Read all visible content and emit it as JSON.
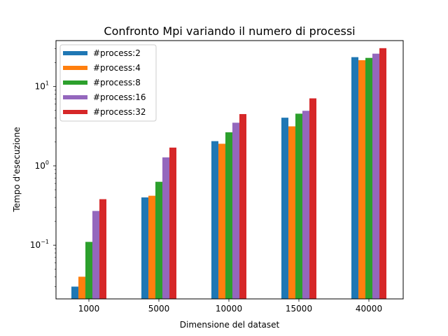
{
  "chart_data": {
    "type": "bar",
    "title": "Confronto Mpi variando il numero di processi",
    "xlabel": "Dimensione del dataset",
    "ylabel": "Tempo d'esecuzione",
    "yscale": "log",
    "ylim": [
      0.021,
      38
    ],
    "y_ticks": [
      {
        "value": 0.1,
        "base": "10",
        "exp": "−1"
      },
      {
        "value": 1,
        "base": "10",
        "exp": "0"
      },
      {
        "value": 10,
        "base": "10",
        "exp": "1"
      }
    ],
    "categories": [
      "1000",
      "5000",
      "10000",
      "15000",
      "40000"
    ],
    "series": [
      {
        "name": "#process:2",
        "color": "#1f77b4",
        "values": [
          0.03,
          0.4,
          2.05,
          4.05,
          23.5
        ]
      },
      {
        "name": "#process:4",
        "color": "#ff7f0e",
        "values": [
          0.04,
          0.42,
          1.9,
          3.15,
          21.5
        ]
      },
      {
        "name": "#process:8",
        "color": "#2ca02c",
        "values": [
          0.11,
          0.63,
          2.65,
          4.55,
          23.0
        ]
      },
      {
        "name": "#process:16",
        "color": "#9467bd",
        "values": [
          0.27,
          1.28,
          3.5,
          4.95,
          26.0
        ]
      },
      {
        "name": "#process:32",
        "color": "#d62728",
        "values": [
          0.38,
          1.7,
          4.5,
          7.1,
          30.5
        ]
      }
    ],
    "legend_position": "top-left",
    "grid": false
  }
}
